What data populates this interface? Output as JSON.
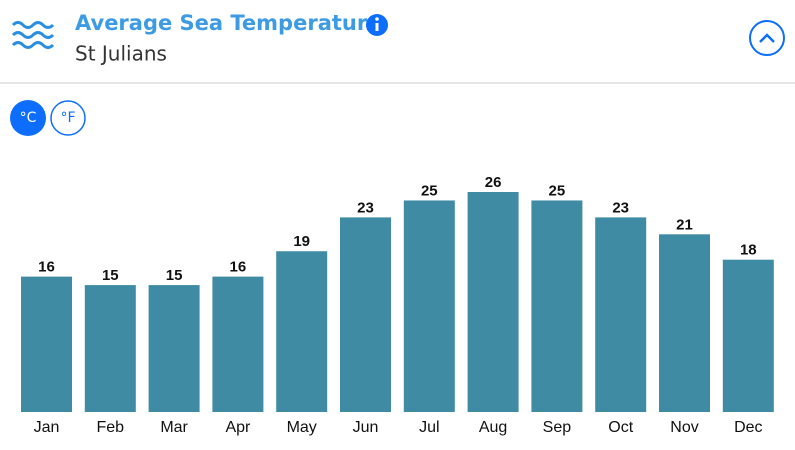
{
  "header": {
    "title": "Average Sea Temperature",
    "subtitle": "St Julians"
  },
  "units": [
    "°C",
    "°F"
  ],
  "chart_data": {
    "type": "bar",
    "categories": [
      "Jan",
      "Feb",
      "Mar",
      "Apr",
      "May",
      "Jun",
      "Jul",
      "Aug",
      "Sep",
      "Oct",
      "Nov",
      "Dec"
    ],
    "values": [
      16,
      15,
      15,
      16,
      19,
      23,
      25,
      26,
      25,
      23,
      21,
      18
    ],
    "color": "#408ba4"
  }
}
